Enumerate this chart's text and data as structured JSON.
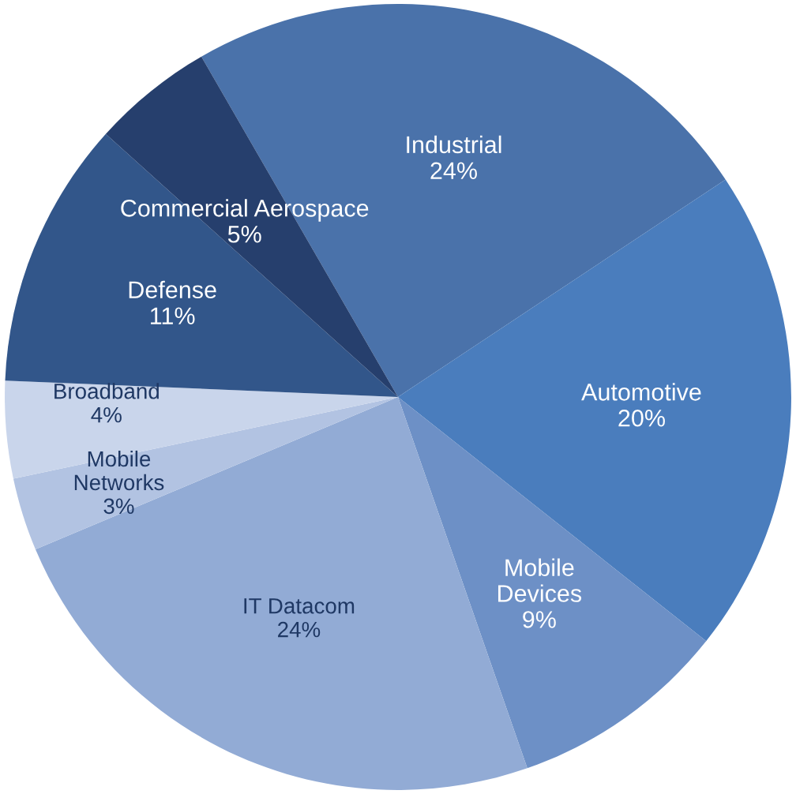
{
  "chart_data": {
    "type": "pie",
    "categories": [
      "Industrial",
      "Automotive",
      "Mobile\nDevices",
      "IT Datacom",
      "Mobile\nNetworks",
      "Broadband",
      "Defense",
      "Commercial Aerospace"
    ],
    "values": [
      24,
      20,
      9,
      24,
      3,
      4,
      11,
      5
    ],
    "value_labels": [
      "24%",
      "20%",
      "9%",
      "24%",
      "3%",
      "4%",
      "11%",
      "5%"
    ],
    "colors": [
      "#4a72aa",
      "#4a7dbd",
      "#6d90c6",
      "#92abd5",
      "#b2c3e2",
      "#c9d5eb",
      "#32568a",
      "#263f6d"
    ]
  }
}
